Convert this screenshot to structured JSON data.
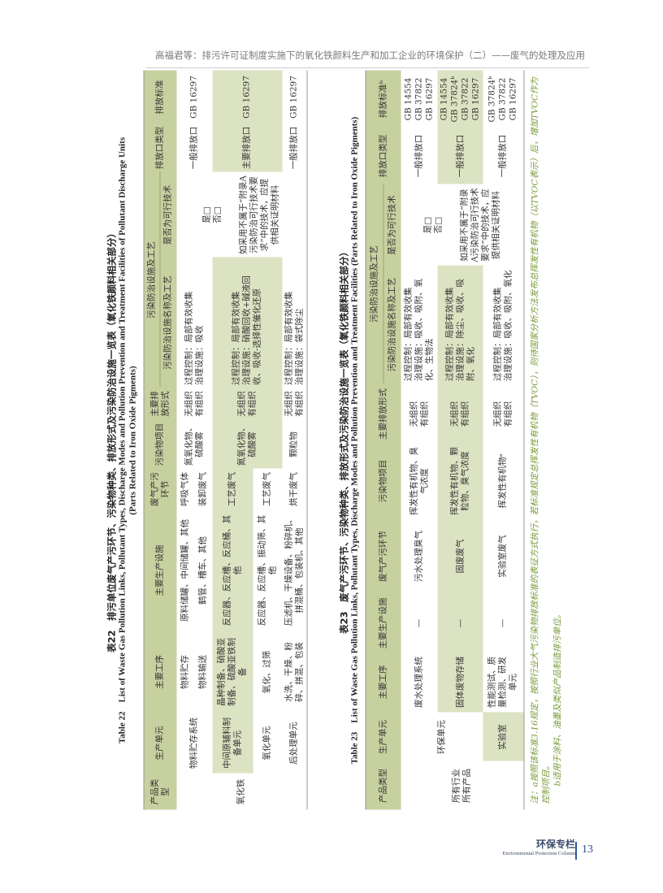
{
  "running_head": "高福君等：排污许可证制度实施下的氧化铁颜料生产和加工企业的环境保护（二）——废气的处理及应用",
  "table22": {
    "title_cn": "表22　排污单位废气产污环节、污染物种类、排放形式及污染防治设施一览表（氧化铁颜料相关部分）",
    "title_en_1": "Table 22　List of Waste Gas Pollution Links, Pollutant Types, Discharge Modes and Pollution Prevention and Treatment Facilities of Pollutant Discharge Units",
    "title_en_2": "(Parts Related to Iron Oxide Pigments)",
    "headers": {
      "product_type": "产品类型",
      "unit": "生产单元",
      "process": "主要工序",
      "facility": "主要生产设施",
      "link": "废气产污环节",
      "pollutant": "污染物项目",
      "mode": "主要排放形式",
      "control": "污染防治设施及工艺",
      "control_name": "污染防治设施名称及工艺",
      "feasible": "是否为可行技术",
      "outlet": "排放口类型",
      "standard": "排放标准"
    },
    "product": "氧化铁",
    "feasible_check": "是□\n否□",
    "feasible_note": "如采用不属于“附录A污染防治可行技术要求”中的技术，应提供相关证明材料",
    "rows": [
      {
        "unit": "物料贮存系统",
        "process": "物料贮存",
        "facility": "原料储罐、中间储罐、其他",
        "link": "呼吸气体",
        "pollutant": "氮氧化物、硫酸雾",
        "mode": "无组织\n有组织",
        "control": "过程控制：局部有效收集\n治理设施：吸收",
        "outlet": "一般排放口",
        "standard": "GB 16297"
      },
      {
        "process": "物料输送",
        "facility": "鹤管、槽车、其他",
        "link": "装卸废气"
      },
      {
        "unit": "中间原辅料制备单元",
        "process": "晶种制备、硝酸亚制备、硫酸亚铁制备",
        "facility": "反应器、反应槽、反应桶、其他",
        "link": "工艺废气",
        "pollutant": "氮氧化物、硫酸雾",
        "mode": "无组织\n有组织",
        "control": "过程控制：局部有效收集\n治理设施：硝酸回收+碱液回收、吸收-选择性催化还原",
        "outlet": "主要排放口",
        "standard": "GB 16297"
      },
      {
        "unit": "氧化单元",
        "process": "氧化、过筛",
        "facility": "反应器、反应槽、振动筛、其他",
        "link": "工艺废气"
      },
      {
        "unit": "后处理单元",
        "process": "水洗、干燥、粉碎、拼混、包装",
        "facility": "压滤机、干燥设备、粉碎机、拼混桶、包装机、其他",
        "link": "烘干废气",
        "pollutant": "颗粒物",
        "mode": "无组织\n有组织",
        "control": "过程控制：局部有效收集\n治理设施：袋式除尘",
        "outlet": "一般排放口",
        "standard": "GB 16297"
      }
    ]
  },
  "table23": {
    "title_cn": "表23　废气产污环节、污染物种类、排放形式及污染防治设施一览表（氧化铁颜料相关部分）",
    "title_en": "Table 23　List of Waste Gas Pollution Links, Pollutant Types, Discharge Modes and Pollution Prevention and Treatment Facilities (Parts Related to Iron Oxide Pigments)",
    "headers": {
      "product_type": "产品类型",
      "unit": "生产单元",
      "process": "主要工序",
      "facility": "主要生产设施",
      "link": "废气产污环节",
      "pollutant": "污染物项目",
      "mode": "主要排放形式",
      "control": "污染防治设施及工艺",
      "control_name": "污染防治设施名称及工艺",
      "feasible": "是否为可行技术",
      "outlet": "排放口类型",
      "standard": "排放标准ᵇ"
    },
    "product": "所有行业\n所有产品",
    "unit_env": "环保单元",
    "feasible_check": "是□\n否□",
    "feasible_note": "如采用不属于“附录A污染防治可行技术要求”中的技术，应提供相关证明材料",
    "rows": [
      {
        "process": "废水处理系统",
        "facility": "—",
        "link": "污水处理臭气",
        "pollutant": "挥发性有机物、臭气浓度",
        "mode": "无组织\n有组织",
        "control": "过程控制：局部有效收集\n治理设施：吸收、吸附、氧化、生物法",
        "outlet": "一般排放口",
        "standard": "GB 14554\nGB 37822\nGB 16297"
      },
      {
        "process": "固体废物存储",
        "facility": "—",
        "link": "固废废气",
        "pollutant": "挥发性有机物、颗粒物、臭气浓度",
        "mode": "无组织\n有组织",
        "control": "过程控制：局部有效收集\n治理设施：除尘、吸收、吸附、氧化",
        "outlet": "一般排放口",
        "standard": "GB 14554\nGB 37824ᵇ\nGB 37822\nGB 16297"
      },
      {
        "unit": "实验室",
        "process": "性能测试、质量检测、研发单元",
        "facility": "—",
        "link": "实验室废气",
        "pollutant": "挥发性有机物ᵃ",
        "mode": "无组织\n有组织",
        "control": "过程控制：局部有效收集\n治理设施：吸收、吸附、氧化",
        "outlet": "一般排放口",
        "standard": "GB 37824ᵇ\nGB 37822\nGB 16297"
      }
    ],
    "note_a": "注：a按照该标准3.16规定，按照行业大气污染物排放标准的表征方式执行，若标准规定总挥发性有机物（TVOC），则待国家分析方法发布总挥发性有机物（以TVOC表示）后，增加TVOC作为控制项目。",
    "note_b": "b适用于涂料、油墨及类似产品制造排污单位。"
  },
  "footer": {
    "column_cn": "环保专栏",
    "column_en": "Environmental Protection Column",
    "page": "13"
  },
  "colors": {
    "header_fill": "#c7d09f",
    "row_fill": "#dce3c2",
    "note_text": "#7a9a3a",
    "page_accent": "#2f5aa0"
  }
}
